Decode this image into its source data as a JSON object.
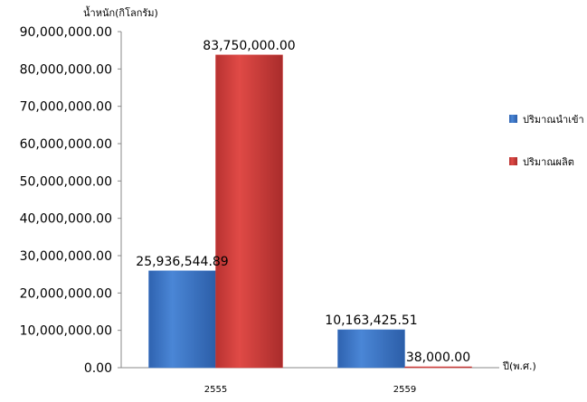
{
  "chart_data": {
    "type": "bar",
    "ylabel": "น้ำหนัก(กิโลกรัม)",
    "xlabel": "ปี(พ.ศ.)",
    "categories": [
      "2555",
      "2559"
    ],
    "series": [
      {
        "name": "ปริมาณนำเข้า",
        "values": [
          25936544.89,
          10163425.51
        ],
        "labels": [
          "25,936,544.89",
          "10,163,425.51"
        ],
        "color": "#3f79c9"
      },
      {
        "name": "ปริมาณผลิต",
        "values": [
          83750000.0,
          38000.0
        ],
        "labels": [
          "83,750,000.00",
          "38,000.00"
        ],
        "color": "#d13d3b"
      }
    ],
    "ylim": [
      0,
      90000000
    ],
    "yticks": [
      0,
      10000000,
      20000000,
      30000000,
      40000000,
      50000000,
      60000000,
      70000000,
      80000000,
      90000000
    ],
    "yticklabels": [
      "0.00",
      "10,000,000.00",
      "20,000,000.00",
      "30,000,000.00",
      "40,000,000.00",
      "50,000,000.00",
      "60,000,000.00",
      "70,000,000.00",
      "80,000,000.00",
      "90,000,000.00"
    ],
    "grid": false,
    "legend_position": "right"
  }
}
